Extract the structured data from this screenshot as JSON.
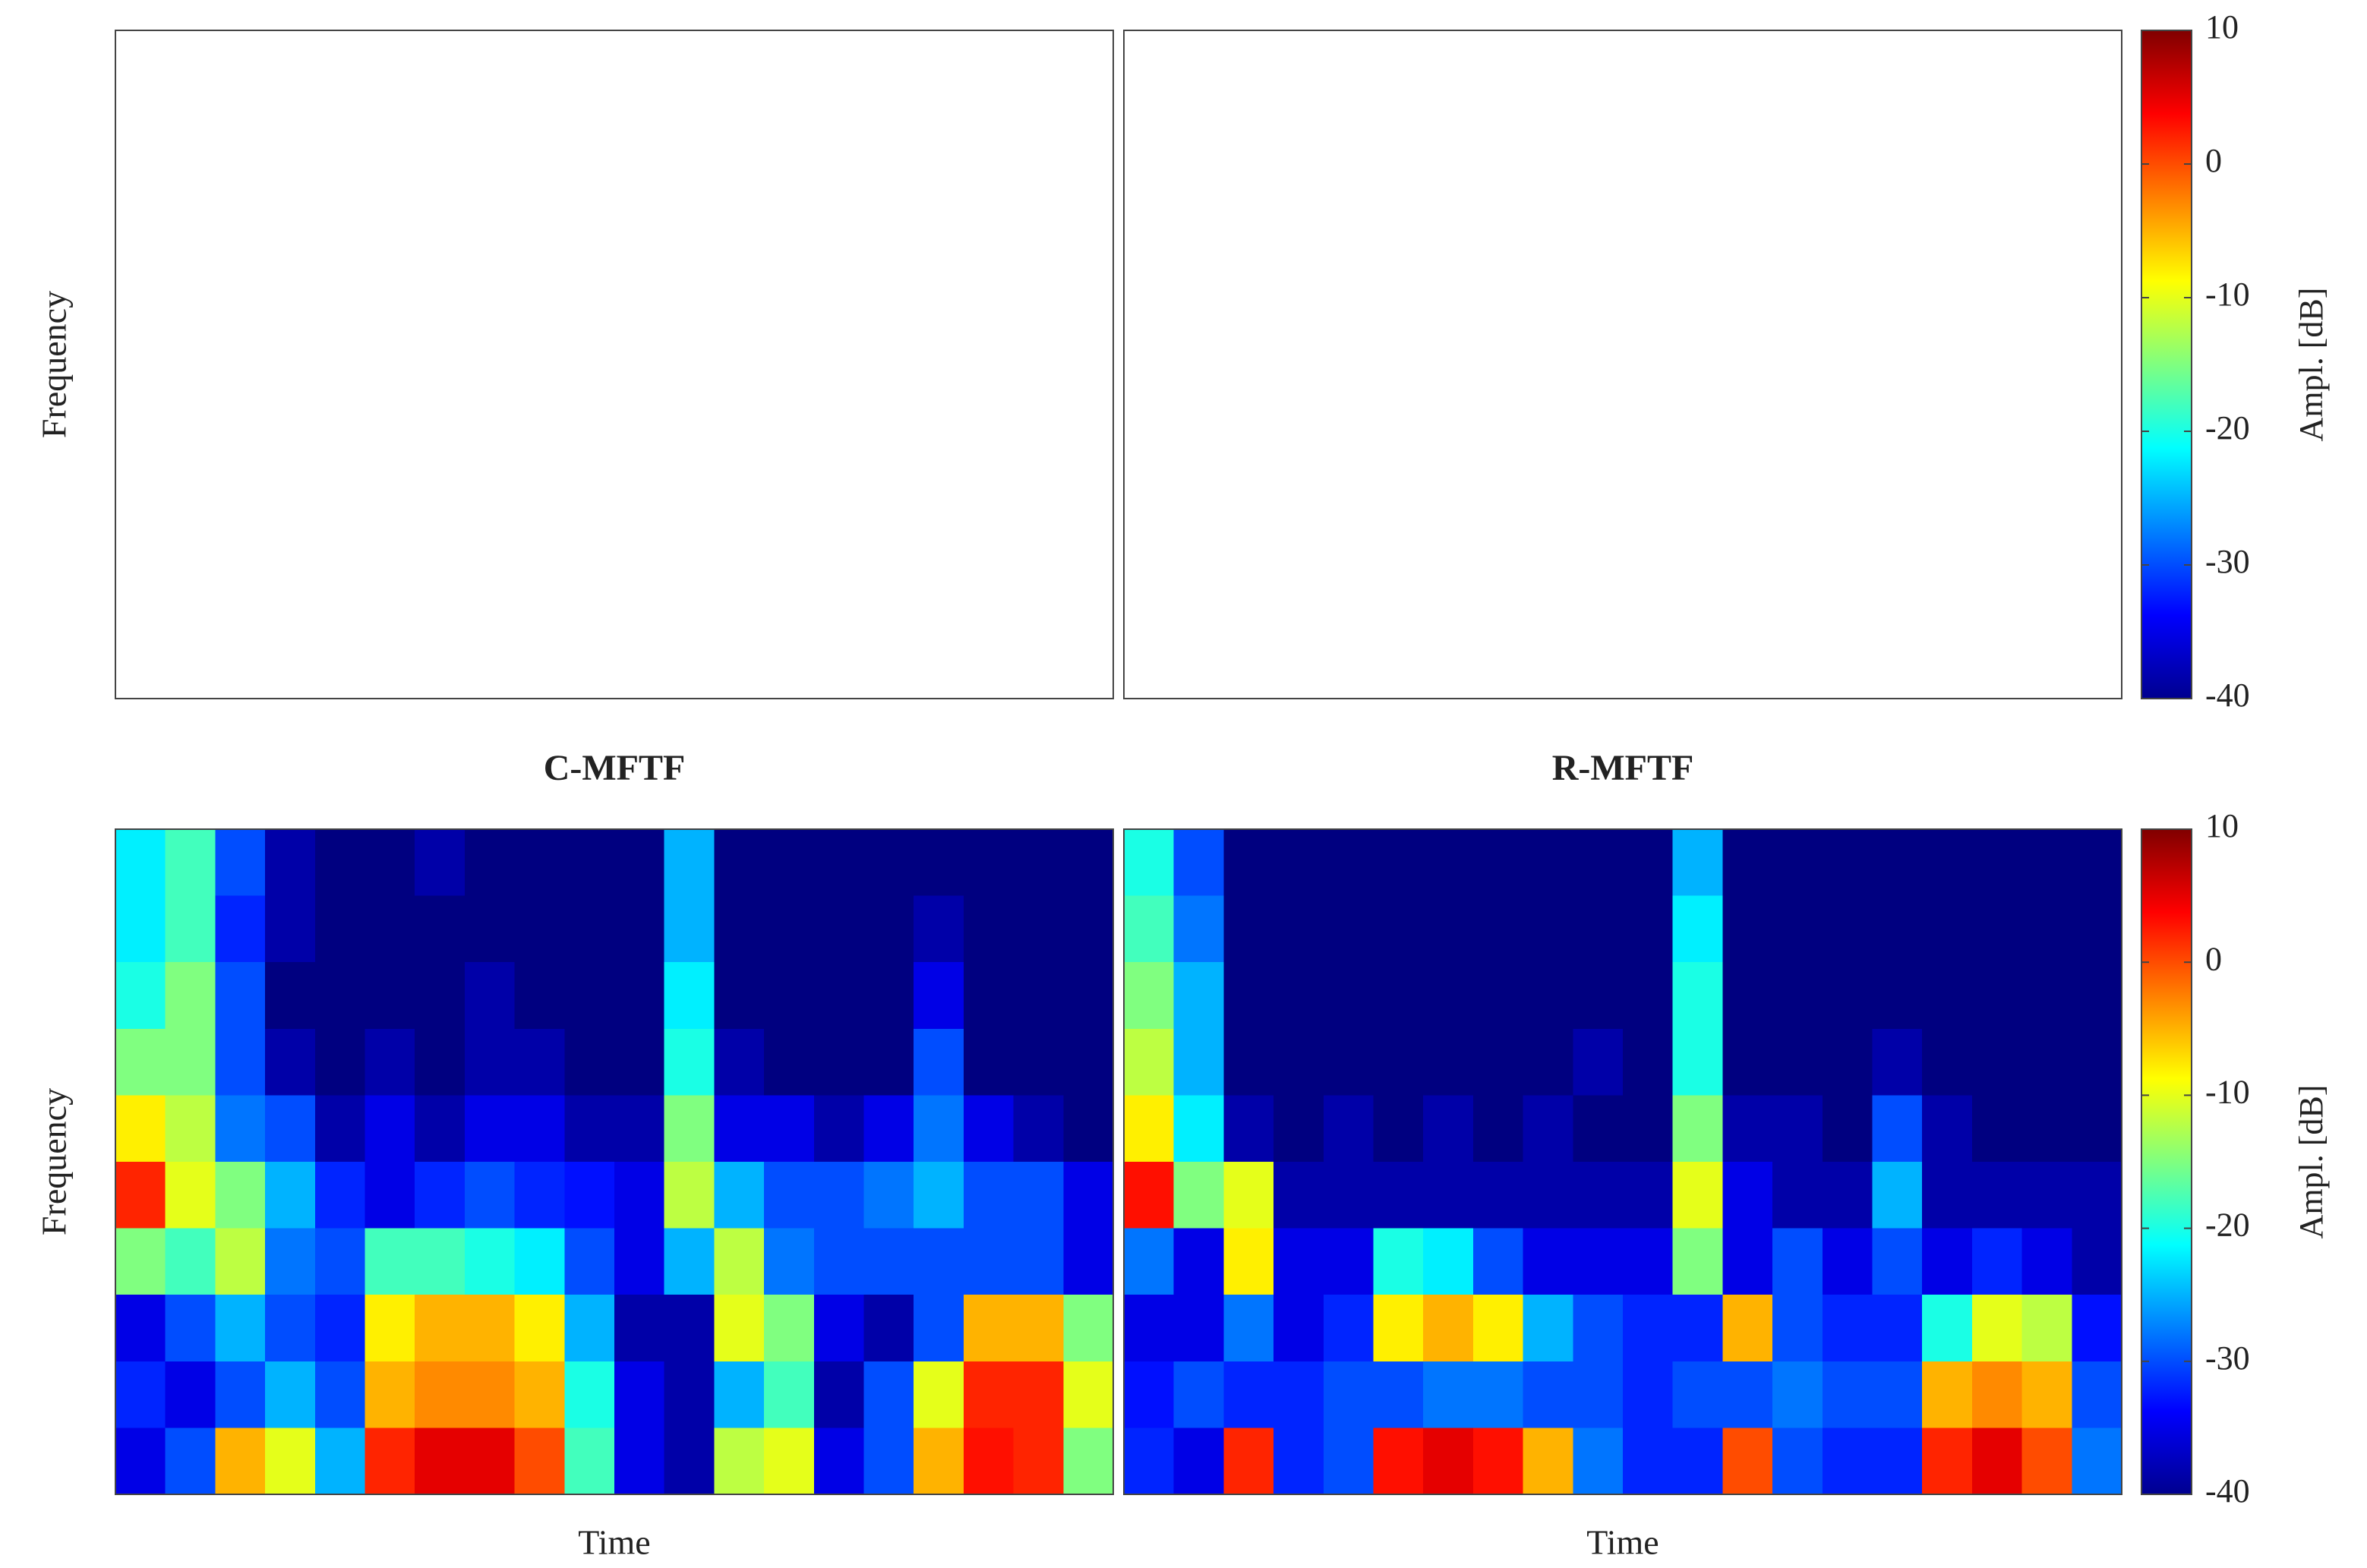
{
  "chart_data": [
    {
      "type": "heatmap",
      "ylabel": "Frequency"
    },
    {
      "type": "heatmap",
      "colormap": "jet",
      "clim": [
        -40,
        10
      ],
      "colorbar_label": "Ampl. [dB]",
      "colorbar_ticks": [
        10,
        0,
        -10,
        -20,
        -30,
        -40
      ]
    },
    {
      "type": "heatmap",
      "title": "C-MFTF",
      "ylabel": "Frequency",
      "xlabel": "Time",
      "colormap": "jet",
      "clim": [
        -40,
        10
      ],
      "values": [
        [
          -22,
          -18,
          -30,
          -38,
          -40,
          -40,
          -38,
          -40,
          -40,
          -40,
          -40,
          -25,
          -40,
          -40,
          -40,
          -40,
          -40,
          -40,
          -40,
          -40
        ],
        [
          -22,
          -18,
          -32,
          -38,
          -40,
          -40,
          -40,
          -40,
          -40,
          -40,
          -40,
          -25,
          -40,
          -40,
          -40,
          -40,
          -38,
          -40,
          -40,
          -40
        ],
        [
          -20,
          -15,
          -30,
          -40,
          -40,
          -40,
          -40,
          -38,
          -40,
          -40,
          -40,
          -22,
          -40,
          -40,
          -40,
          -40,
          -35,
          -40,
          -40,
          -40
        ],
        [
          -15,
          -15,
          -30,
          -38,
          -40,
          -38,
          -40,
          -38,
          -38,
          -40,
          -40,
          -20,
          -38,
          -40,
          -40,
          -40,
          -30,
          -40,
          -40,
          -40
        ],
        [
          -8,
          -12,
          -28,
          -30,
          -38,
          -35,
          -38,
          -35,
          -35,
          -38,
          -38,
          -15,
          -35,
          -35,
          -38,
          -35,
          -28,
          -35,
          -38,
          -40
        ],
        [
          2,
          -10,
          -15,
          -25,
          -32,
          -35,
          -32,
          -30,
          -32,
          -33,
          -35,
          -12,
          -25,
          -30,
          -30,
          -28,
          -25,
          -30,
          -30,
          -35
        ],
        [
          -15,
          -18,
          -12,
          -28,
          -30,
          -18,
          -18,
          -20,
          -22,
          -30,
          -35,
          -25,
          -12,
          -28,
          -30,
          -30,
          -30,
          -30,
          -30,
          -35
        ],
        [
          -35,
          -30,
          -25,
          -30,
          -32,
          -8,
          -5,
          -5,
          -8,
          -25,
          -38,
          -38,
          -10,
          -15,
          -35,
          -38,
          -30,
          -5,
          -5,
          -15
        ],
        [
          -32,
          -35,
          -30,
          -25,
          -30,
          -5,
          -3,
          -3,
          -5,
          -20,
          -35,
          -38,
          -25,
          -18,
          -38,
          -30,
          -10,
          2,
          2,
          -10
        ],
        [
          -35,
          -30,
          -5,
          -10,
          -25,
          2,
          5,
          5,
          0,
          -18,
          -35,
          -38,
          -12,
          -10,
          -35,
          -30,
          -5,
          3,
          2,
          -15
        ]
      ]
    },
    {
      "type": "heatmap",
      "title": "R-MFTF",
      "xlabel": "Time",
      "colormap": "jet",
      "clim": [
        -40,
        10
      ],
      "colorbar_label": "Ampl. [dB]",
      "colorbar_ticks": [
        10,
        0,
        -10,
        -20,
        -30,
        -40
      ],
      "values": [
        [
          -20,
          -30,
          -40,
          -40,
          -40,
          -40,
          -40,
          -40,
          -40,
          -40,
          -40,
          -25,
          -40,
          -40,
          -40,
          -40,
          -40,
          -40,
          -40,
          -40
        ],
        [
          -18,
          -28,
          -40,
          -40,
          -40,
          -40,
          -40,
          -40,
          -40,
          -40,
          -40,
          -22,
          -40,
          -40,
          -40,
          -40,
          -40,
          -40,
          -40,
          -40
        ],
        [
          -15,
          -25,
          -40,
          -40,
          -40,
          -40,
          -40,
          -40,
          -40,
          -40,
          -40,
          -20,
          -40,
          -40,
          -40,
          -40,
          -40,
          -40,
          -40,
          -40
        ],
        [
          -12,
          -25,
          -40,
          -40,
          -40,
          -40,
          -40,
          -40,
          -40,
          -38,
          -40,
          -20,
          -40,
          -40,
          -40,
          -38,
          -40,
          -40,
          -40,
          -40
        ],
        [
          -8,
          -22,
          -38,
          -40,
          -38,
          -40,
          -38,
          -40,
          -38,
          -40,
          -40,
          -15,
          -38,
          -38,
          -40,
          -30,
          -38,
          -40,
          -40,
          -40
        ],
        [
          3,
          -15,
          -10,
          -38,
          -38,
          -38,
          -38,
          -38,
          -38,
          -38,
          -38,
          -10,
          -35,
          -38,
          -38,
          -25,
          -38,
          -38,
          -38,
          -38
        ],
        [
          -28,
          -35,
          -8,
          -35,
          -35,
          -20,
          -22,
          -30,
          -35,
          -35,
          -35,
          -15,
          -35,
          -30,
          -35,
          -30,
          -35,
          -32,
          -35,
          -38
        ],
        [
          -35,
          -35,
          -28,
          -35,
          -32,
          -8,
          -5,
          -8,
          -25,
          -30,
          -32,
          -32,
          -5,
          -30,
          -32,
          -32,
          -20,
          -10,
          -12,
          -33
        ],
        [
          -33,
          -30,
          -32,
          -32,
          -30,
          -30,
          -28,
          -28,
          -30,
          -30,
          -32,
          -30,
          -30,
          -28,
          -30,
          -30,
          -5,
          -3,
          -5,
          -30
        ],
        [
          -32,
          -35,
          2,
          -32,
          -30,
          3,
          5,
          3,
          -5,
          -28,
          -32,
          -32,
          0,
          -30,
          -32,
          -32,
          2,
          5,
          0,
          -28
        ]
      ]
    }
  ]
}
